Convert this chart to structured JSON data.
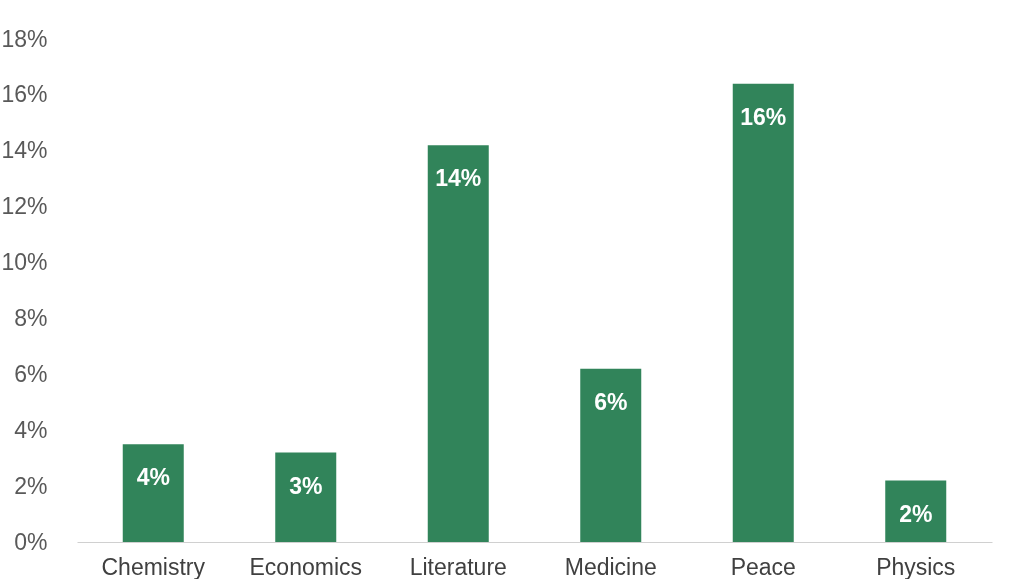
{
  "chart_data": {
    "type": "bar",
    "categories": [
      "Chemistry",
      "Economics",
      "Literature",
      "Medicine",
      "Peace",
      "Physics"
    ],
    "values": [
      3.5,
      3.2,
      14.2,
      6.2,
      16.4,
      2.2
    ],
    "value_labels": [
      "4%",
      "3%",
      "14%",
      "6%",
      "16%",
      "2%"
    ],
    "color": "#31845a",
    "ylim": [
      0,
      18
    ],
    "yticks": [
      {
        "value": 0,
        "label": "0%"
      },
      {
        "value": 2,
        "label": "2%"
      },
      {
        "value": 4,
        "label": "4%"
      },
      {
        "value": 6,
        "label": "6%"
      },
      {
        "value": 8,
        "label": "8%"
      },
      {
        "value": 10,
        "label": "10%"
      },
      {
        "value": 12,
        "label": "12%"
      },
      {
        "value": 14,
        "label": "14%"
      },
      {
        "value": 16,
        "label": "16%"
      },
      {
        "value": 18,
        "label": "18%"
      }
    ],
    "grid": false
  }
}
